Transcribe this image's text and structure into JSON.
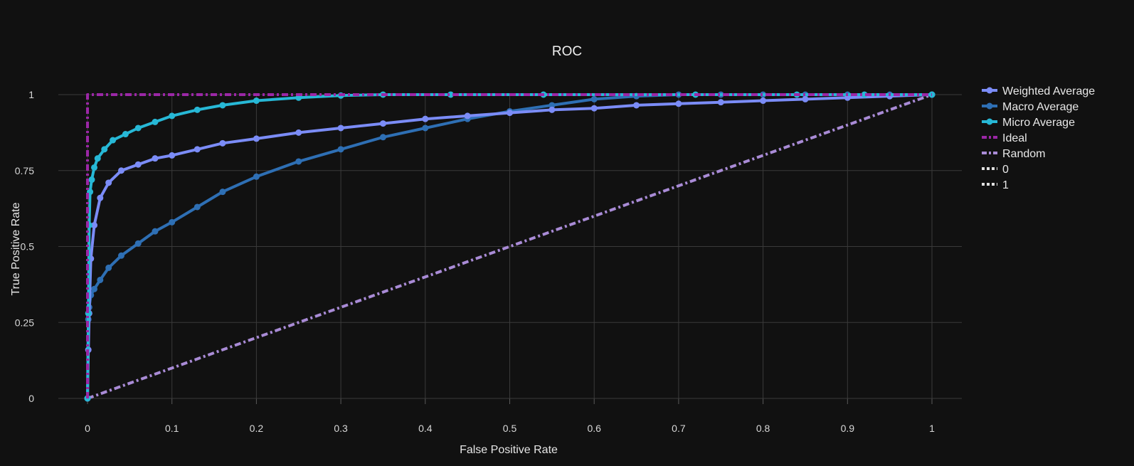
{
  "chart_data": {
    "type": "line",
    "title": "ROC",
    "xlabel": "False Positive Rate",
    "ylabel": "True Positive Rate",
    "xlim": [
      0,
      1
    ],
    "ylim": [
      0,
      1
    ],
    "x_ticks": [
      "0",
      "0.1",
      "0.2",
      "0.3",
      "0.4",
      "0.5",
      "0.6",
      "0.7",
      "0.8",
      "0.9",
      "1"
    ],
    "y_ticks": [
      "0",
      "0.25",
      "0.5",
      "0.75",
      "1"
    ],
    "grid": true,
    "legend_position": "top-right",
    "series": [
      {
        "name": "Weighted Average",
        "color": "#7b8cf7",
        "style": "line+markers",
        "x": [
          0,
          0.001,
          0.002,
          0.004,
          0.008,
          0.015,
          0.025,
          0.04,
          0.06,
          0.08,
          0.1,
          0.13,
          0.16,
          0.2,
          0.25,
          0.3,
          0.35,
          0.4,
          0.45,
          0.5,
          0.55,
          0.6,
          0.65,
          0.7,
          0.75,
          0.8,
          0.85,
          0.9,
          0.95,
          1
        ],
        "y": [
          0,
          0.16,
          0.28,
          0.46,
          0.57,
          0.66,
          0.71,
          0.75,
          0.77,
          0.79,
          0.8,
          0.82,
          0.84,
          0.855,
          0.875,
          0.89,
          0.905,
          0.92,
          0.93,
          0.94,
          0.95,
          0.955,
          0.965,
          0.97,
          0.975,
          0.98,
          0.985,
          0.99,
          0.995,
          1
        ]
      },
      {
        "name": "Macro Average",
        "color": "#2e6fb4",
        "style": "line+markers",
        "x": [
          0,
          0.001,
          0.002,
          0.004,
          0.008,
          0.015,
          0.025,
          0.04,
          0.06,
          0.08,
          0.1,
          0.13,
          0.16,
          0.2,
          0.25,
          0.3,
          0.35,
          0.4,
          0.45,
          0.5,
          0.55,
          0.6,
          0.65,
          0.7,
          0.75,
          0.8,
          0.85,
          0.9,
          0.95,
          1
        ],
        "y": [
          0,
          0.26,
          0.3,
          0.34,
          0.36,
          0.39,
          0.43,
          0.47,
          0.51,
          0.55,
          0.58,
          0.63,
          0.68,
          0.73,
          0.78,
          0.82,
          0.86,
          0.89,
          0.92,
          0.945,
          0.965,
          0.985,
          0.995,
          1,
          1,
          1,
          1,
          1,
          1,
          1
        ]
      },
      {
        "name": "Micro Average",
        "color": "#27b8d6",
        "style": "line+markers",
        "x": [
          0,
          0.001,
          0.002,
          0.003,
          0.005,
          0.008,
          0.012,
          0.02,
          0.03,
          0.045,
          0.06,
          0.08,
          0.1,
          0.13,
          0.16,
          0.2,
          0.25,
          0.3,
          0.35,
          0.43,
          0.54,
          0.72,
          0.84,
          0.92,
          1
        ],
        "y": [
          0,
          0.28,
          0.57,
          0.68,
          0.72,
          0.76,
          0.79,
          0.82,
          0.85,
          0.87,
          0.89,
          0.91,
          0.93,
          0.95,
          0.965,
          0.98,
          0.99,
          0.997,
          1,
          1,
          1,
          1,
          1,
          1,
          1
        ]
      },
      {
        "name": "Ideal",
        "color": "#9b27a6",
        "style": "dashdot",
        "x": [
          0,
          0,
          1
        ],
        "y": [
          0,
          1,
          1
        ]
      },
      {
        "name": "Random",
        "color": "#a98bd6",
        "style": "dashdot",
        "x": [
          0,
          1
        ],
        "y": [
          0,
          1
        ]
      },
      {
        "name": "0",
        "color": "#e0e0e0",
        "style": "dot",
        "x": [],
        "y": []
      },
      {
        "name": "1",
        "color": "#e0e0e0",
        "style": "dot",
        "x": [],
        "y": []
      }
    ]
  }
}
